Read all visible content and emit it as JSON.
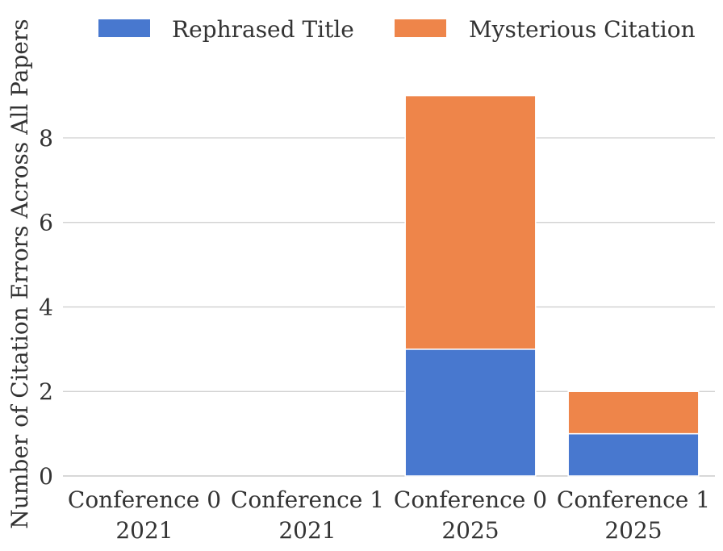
{
  "chart_data": {
    "type": "bar",
    "stacked": true,
    "categories": [
      [
        "Conference 0",
        "2021"
      ],
      [
        "Conference 1",
        "2021"
      ],
      [
        "Conference 0",
        "2025"
      ],
      [
        "Conference 1",
        "2025"
      ]
    ],
    "series": [
      {
        "name": "Rephrased Title",
        "color": "#4878cf",
        "values": [
          0,
          0,
          3,
          1
        ]
      },
      {
        "name": "Mysterious Citation",
        "color": "#ee854a",
        "values": [
          0,
          0,
          6,
          1
        ]
      }
    ],
    "ylabel": "Number of Citation Errors Across All Papers",
    "xlabel": "",
    "ylim": [
      0,
      9.45
    ],
    "yticks": [
      0,
      2,
      4,
      6,
      8
    ],
    "grid": "horizontal",
    "legend_position": "top"
  }
}
